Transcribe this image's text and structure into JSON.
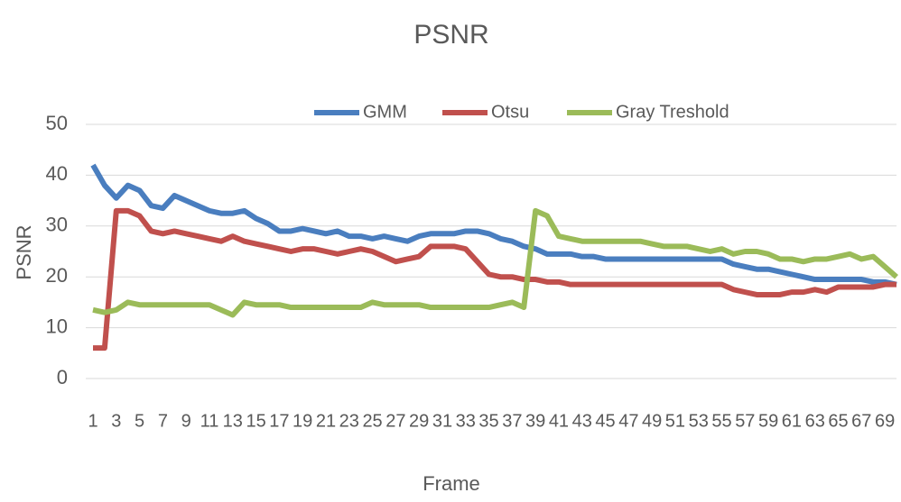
{
  "chart_data": {
    "type": "line",
    "title": "PSNR",
    "xlabel": "Frame",
    "ylabel": "PSNR",
    "x": [
      1,
      2,
      3,
      4,
      5,
      6,
      7,
      8,
      9,
      10,
      11,
      12,
      13,
      14,
      15,
      16,
      17,
      18,
      19,
      20,
      21,
      22,
      23,
      24,
      25,
      26,
      27,
      28,
      29,
      30,
      31,
      32,
      33,
      34,
      35,
      36,
      37,
      38,
      39,
      40,
      41,
      42,
      43,
      44,
      45,
      46,
      47,
      48,
      49,
      50,
      51,
      52,
      53,
      54,
      55,
      56,
      57,
      58,
      59,
      60,
      61,
      62,
      63,
      64,
      65,
      66,
      67,
      68,
      69,
      70
    ],
    "xlim": [
      1,
      70
    ],
    "xticks": [
      1,
      3,
      5,
      7,
      9,
      11,
      13,
      15,
      17,
      19,
      21,
      23,
      25,
      27,
      29,
      31,
      33,
      35,
      37,
      39,
      41,
      43,
      45,
      47,
      49,
      51,
      53,
      55,
      57,
      59,
      61,
      63,
      65,
      67,
      69
    ],
    "ylim": [
      0,
      50
    ],
    "yticks": [
      0,
      10,
      20,
      30,
      40,
      50
    ],
    "grid": true,
    "legend": "top",
    "series": [
      {
        "name": "GMM",
        "color": "#4a7ebf",
        "values": [
          42,
          38,
          35.5,
          38,
          37,
          34,
          33.5,
          36,
          35,
          34,
          33,
          32.5,
          32.5,
          33,
          31.5,
          30.5,
          29,
          29,
          29.5,
          29,
          28.5,
          29,
          28,
          28,
          27.5,
          28,
          27.5,
          27,
          28,
          28.5,
          28.5,
          28.5,
          29,
          29,
          28.5,
          27.5,
          27,
          26,
          25.5,
          24.5,
          24.5,
          24.5,
          24,
          24,
          23.5,
          23.5,
          23.5,
          23.5,
          23.5,
          23.5,
          23.5,
          23.5,
          23.5,
          23.5,
          23.5,
          22.5,
          22,
          21.5,
          21.5,
          21,
          20.5,
          20,
          19.5,
          19.5,
          19.5,
          19.5,
          19.5,
          19,
          19,
          18.5
        ]
      },
      {
        "name": "Otsu",
        "color": "#c0504d",
        "values": [
          6,
          6,
          33,
          33,
          32,
          29,
          28.5,
          29,
          28.5,
          28,
          27.5,
          27,
          28,
          27,
          26.5,
          26,
          25.5,
          25,
          25.5,
          25.5,
          25,
          24.5,
          25,
          25.5,
          25,
          24,
          23,
          23.5,
          24,
          26,
          26,
          26,
          25.5,
          23,
          20.5,
          20,
          20,
          19.5,
          19.5,
          19,
          19,
          18.5,
          18.5,
          18.5,
          18.5,
          18.5,
          18.5,
          18.5,
          18.5,
          18.5,
          18.5,
          18.5,
          18.5,
          18.5,
          18.5,
          17.5,
          17,
          16.5,
          16.5,
          16.5,
          17,
          17,
          17.5,
          17,
          18,
          18,
          18,
          18,
          18.5,
          18.5
        ]
      },
      {
        "name": "Gray Treshold",
        "color": "#9bbb59",
        "values": [
          13.5,
          13,
          13.5,
          15,
          14.5,
          14.5,
          14.5,
          14.5,
          14.5,
          14.5,
          14.5,
          13.5,
          12.5,
          15,
          14.5,
          14.5,
          14.5,
          14,
          14,
          14,
          14,
          14,
          14,
          14,
          15,
          14.5,
          14.5,
          14.5,
          14.5,
          14,
          14,
          14,
          14,
          14,
          14,
          14.5,
          15,
          14,
          33,
          32,
          28,
          27.5,
          27,
          27,
          27,
          27,
          27,
          27,
          26.5,
          26,
          26,
          26,
          25.5,
          25,
          25.5,
          24.5,
          25,
          25,
          24.5,
          23.5,
          23.5,
          23,
          23.5,
          23.5,
          24,
          24.5,
          23.5,
          24,
          22,
          20
        ]
      }
    ]
  }
}
